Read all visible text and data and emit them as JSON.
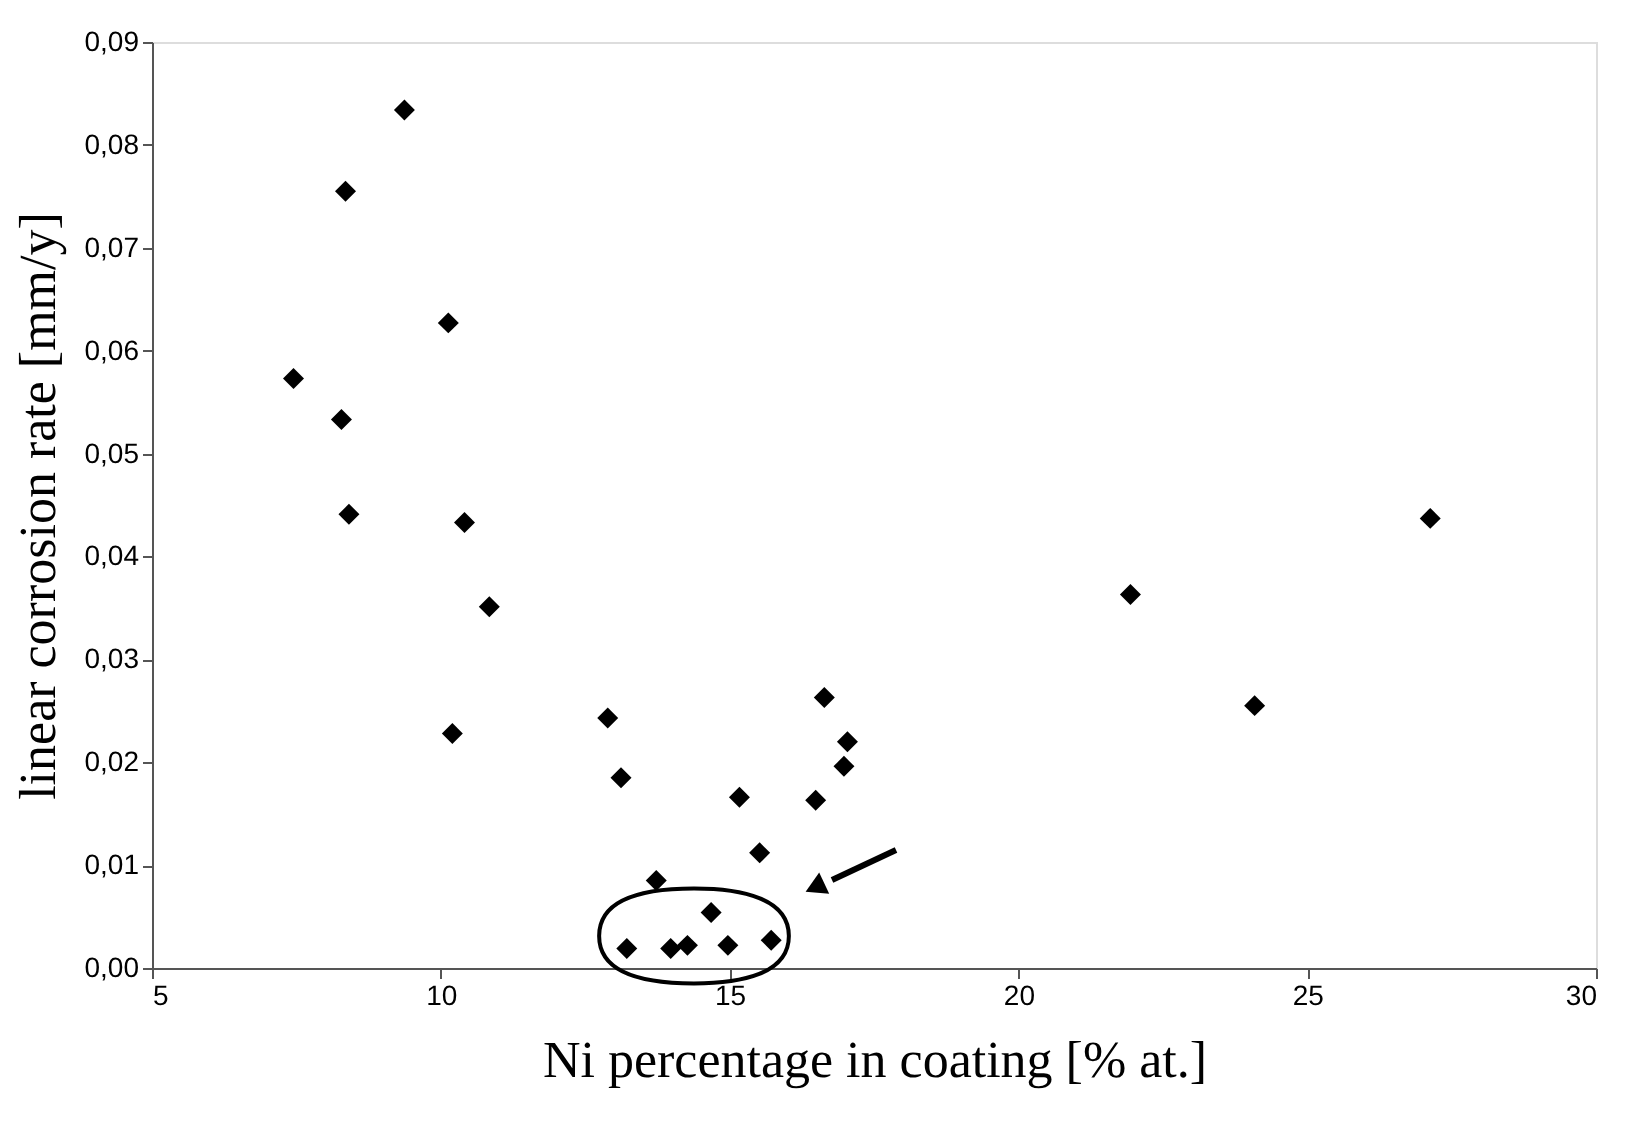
{
  "chart_data": {
    "type": "scatter",
    "xlabel": "Ni percentage in coating [% at.]",
    "ylabel": "linear corrosion rate [mm/y]",
    "x": [
      9.37,
      8.35,
      10.13,
      7.45,
      8.28,
      8.41,
      10.41,
      10.84,
      10.2,
      12.89,
      13.12,
      13.73,
      13.22,
      13.98,
      14.27,
      14.68,
      14.97,
      15.72,
      15.17,
      15.52,
      16.49,
      16.64,
      17.04,
      16.98,
      21.94,
      24.09,
      27.13
    ],
    "series": [
      {
        "color": "#000000",
        "values": [
          0.0834,
          0.0755,
          0.0627,
          0.0573,
          0.0533,
          0.0441,
          0.0433,
          0.0351,
          0.0228,
          0.0243,
          0.0185,
          0.0085,
          0.0019,
          0.0019,
          0.0022,
          0.0054,
          0.0022,
          0.0027,
          0.0166,
          0.0112,
          0.0163,
          0.0263,
          0.022,
          0.0196,
          0.0363,
          0.0255,
          0.0437
        ]
      }
    ],
    "xlim": [
      5,
      30
    ],
    "xticks": [
      5,
      10,
      15,
      20,
      25,
      30
    ],
    "ylim": [
      0,
      0.09
    ],
    "yticks": [
      {
        "value": 0,
        "label": "0,00"
      },
      {
        "value": 0.01,
        "label": "0,01"
      },
      {
        "value": 0.02,
        "label": "0,02"
      },
      {
        "value": 0.03,
        "label": "0,03"
      },
      {
        "value": 0.04,
        "label": "0,04"
      },
      {
        "value": 0.05,
        "label": "0,05"
      },
      {
        "value": 0.06,
        "label": "0,06"
      },
      {
        "value": 0.07,
        "label": "0,07"
      },
      {
        "value": 0.08,
        "label": "0,08"
      },
      {
        "value": 0.09,
        "label": "0,09"
      }
    ],
    "marker": "diamond",
    "grid": false,
    "legend": false
  }
}
